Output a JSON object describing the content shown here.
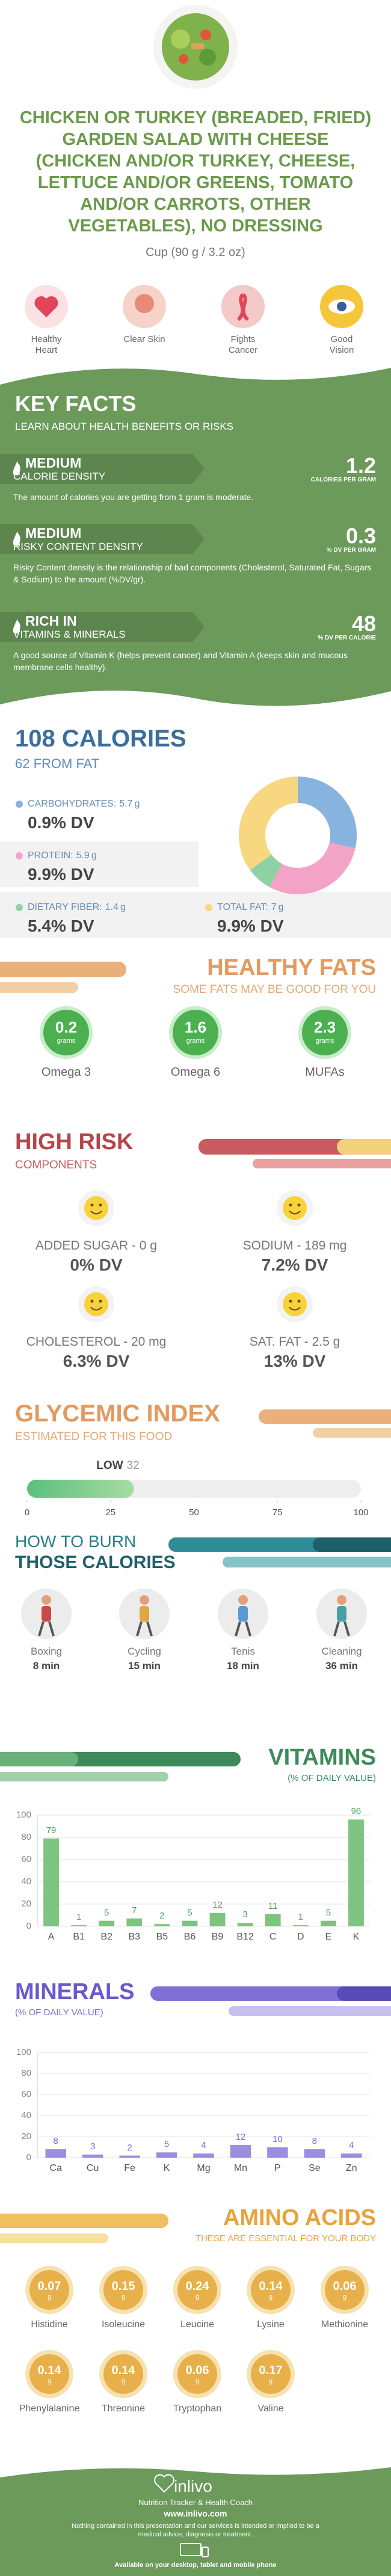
{
  "header": {
    "title": "CHICKEN OR TURKEY (BREADED, FRIED) GARDEN SALAD WITH CHEESE (CHICKEN AND/OR TURKEY, CHEESE, LETTUCE AND/OR GREENS, TOMATO AND/OR CARROTS, OTHER VEGETABLES), NO DRESSING",
    "serving": "Cup (90 g / 3.2 oz)"
  },
  "benefits": [
    "Healthy Heart",
    "Clear Skin",
    "Fights Cancer",
    "Good Vision"
  ],
  "key_facts": {
    "title": "KEY FACTS",
    "subtitle": "LEARN ABOUT HEALTH BENEFITS OR RISKS",
    "items": [
      {
        "level": "MEDIUM",
        "name": "CALORIE DENSITY",
        "value": 1.2,
        "unit": "CALORIES PER GRAM",
        "description": "The amount of calories you are getting from 1 gram is moderate."
      },
      {
        "level": "MEDIUM",
        "name": "RISKY CONTENT DENSITY",
        "value": 0.3,
        "unit": "% DV PER GRAM",
        "description": "Risky Content density is the relationship of bad components (Cholesterol, Saturated Fat, Sugars & Sodium) to the amount (%DV/gr)."
      },
      {
        "level": "RICH IN",
        "name": "VITAMINS & MINERALS",
        "value": 48,
        "unit": "% DV PER CALORIE",
        "description": "A good source of Vitamin K (helps prevent cancer) and Vitamin A (keeps skin and mucous membrane cells healthy)."
      }
    ]
  },
  "calories": {
    "title": "108 CALORIES",
    "subtitle": "62 FROM FAT",
    "nutrients": [
      {
        "label": "CARBOHYDRATES:",
        "amount": 5.7,
        "unit": "g",
        "dv": "0.9% DV",
        "color": "#86b4de"
      },
      {
        "label": "PROTEIN:",
        "amount": 5.9,
        "unit": "g",
        "dv": "9.9% DV",
        "color": "#f3a3c6"
      },
      {
        "label": "DIETARY FIBER:",
        "amount": 1.4,
        "unit": "g",
        "dv": "5.4% DV",
        "color": "#8fd1a4"
      },
      {
        "label": "TOTAL FAT:",
        "amount": 7,
        "unit": "g",
        "dv": "9.9% DV",
        "color": "#f7d77f"
      }
    ]
  },
  "healthy_fats": {
    "title": "HEALTHY FATS",
    "subtitle": "SOME FATS MAY BE GOOD FOR YOU",
    "items": [
      {
        "name": "Omega 3",
        "value": 0.2,
        "unit": "grams"
      },
      {
        "name": "Omega 6",
        "value": 1.6,
        "unit": "grams"
      },
      {
        "name": "MUFAs",
        "value": 2.3,
        "unit": "grams"
      }
    ]
  },
  "high_risk": {
    "title": "HIGH RISK",
    "subtitle": "COMPONENTS",
    "items": [
      {
        "label": "ADDED SUGAR - 0 g",
        "dv": "0% DV"
      },
      {
        "label": "SODIUM - 189 mg",
        "dv": "7.2% DV"
      },
      {
        "label": "CHOLESTEROL - 20 mg",
        "dv": "6.3% DV"
      },
      {
        "label": "SAT. FAT - 2.5 g",
        "dv": "13% DV"
      }
    ]
  },
  "glycemic": {
    "title": "GLYCEMIC INDEX",
    "subtitle": "ESTIMATED FOR THIS FOOD",
    "level": "LOW",
    "value": 32,
    "xlim": [
      0,
      100
    ],
    "xticks": [
      0,
      25,
      50,
      75,
      100
    ]
  },
  "burn": {
    "title": "HOW TO BURN",
    "subtitle": "THOSE CALORIES",
    "activities": [
      {
        "name": "Boxing",
        "time": "8 min"
      },
      {
        "name": "Cycling",
        "time": "15 min"
      },
      {
        "name": "Tenis",
        "time": "18 min"
      },
      {
        "name": "Cleaning",
        "time": "36 min"
      }
    ]
  },
  "chart_data": [
    {
      "type": "bar",
      "title": "VITAMINS",
      "subtitle": "(% OF DAILY VALUE)",
      "categories": [
        "A",
        "B1",
        "B2",
        "B3",
        "B5",
        "B6",
        "B9",
        "B12",
        "C",
        "D",
        "E",
        "K"
      ],
      "values": [
        79,
        1,
        5,
        7,
        2,
        5,
        12,
        3,
        11,
        1,
        5,
        96
      ],
      "color": "#7cc47f",
      "ylim": [
        0,
        100
      ],
      "yticks": [
        0,
        20,
        40,
        60,
        80,
        100
      ],
      "grid": true
    },
    {
      "type": "bar",
      "title": "MINERALS",
      "subtitle": "(% OF DAILY VALUE)",
      "categories": [
        "Ca",
        "Cu",
        "Fe",
        "K",
        "Mg",
        "Mn",
        "P",
        "Se",
        "Zn"
      ],
      "values": [
        8,
        3,
        2,
        5,
        4,
        12,
        10,
        8,
        4
      ],
      "color": "#9a8ee0",
      "ylim": [
        0,
        100
      ],
      "yticks": [
        0,
        20,
        40,
        60,
        80,
        100
      ],
      "grid": true
    }
  ],
  "amino_acids": {
    "title": "AMINO ACIDS",
    "subtitle": "THESE ARE ESSENTIAL FOR YOUR BODY",
    "unit": "g",
    "items": [
      {
        "name": "Histidine",
        "value": 0.07
      },
      {
        "name": "Isoleucine",
        "value": 0.15
      },
      {
        "name": "Leucine",
        "value": 0.24
      },
      {
        "name": "Lysine",
        "value": 0.14
      },
      {
        "name": "Methionine",
        "value": 0.06
      },
      {
        "name": "Phenylalanine",
        "value": 0.14
      },
      {
        "name": "Threonine",
        "value": 0.14
      },
      {
        "name": "Tryptophan",
        "value": 0.06
      },
      {
        "name": "Valine",
        "value": 0.17
      }
    ]
  },
  "footer": {
    "brand": "inlivo",
    "tagline": "Nutrition Tracker & Health Coach",
    "url": "www.inlivo.com",
    "disclaimer": "Nothing contained in this presentation and our services is intended or implied to be a medical advice, diagnosis or treatment.",
    "availability": "Available on your desktop, tablet and mobile phone"
  }
}
